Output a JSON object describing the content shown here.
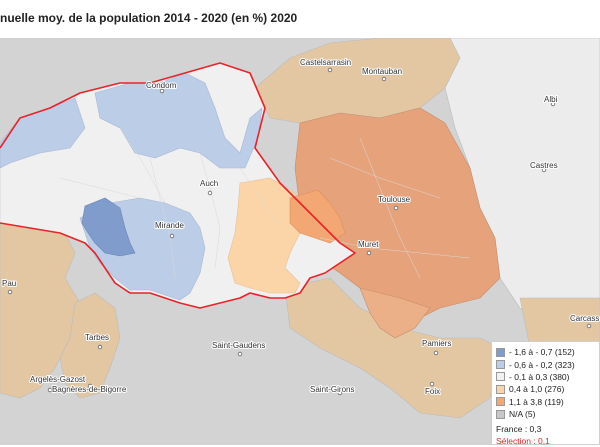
{
  "title": "nuelle moy. de la population 2014 - 2020 (en %) 2020",
  "colors": {
    "class_1": "#7f9ccc",
    "class_2": "#bccde8",
    "class_3": "#f1f1f1",
    "class_4": "#fbd5a7",
    "class_5": "#f3a772",
    "na": "#c7c7c7",
    "selection_border": "#e8232a"
  },
  "cities": [
    {
      "name": "Castelsarrasin"
    },
    {
      "name": "Montauban"
    },
    {
      "name": "Condom"
    },
    {
      "name": "Albi"
    },
    {
      "name": "Auch"
    },
    {
      "name": "Toulouse"
    },
    {
      "name": "Castres"
    },
    {
      "name": "Mirande"
    },
    {
      "name": "Muret"
    },
    {
      "name": "Pau"
    },
    {
      "name": "Tarbes"
    },
    {
      "name": "Carcass"
    },
    {
      "name": "Saint-Gaudens"
    },
    {
      "name": "Pamiers"
    },
    {
      "name": "Argelès-Gazost"
    },
    {
      "name": "Bagnères-de-Bigorre"
    },
    {
      "name": "Saint-Girons"
    },
    {
      "name": "Foix"
    }
  ],
  "legend": {
    "items": [
      {
        "label": "- 1,6 à - 0,7 (152)",
        "color": "#7f9ccc"
      },
      {
        "label": "- 0,6 à - 0,2 (323)",
        "color": "#bccde8"
      },
      {
        "label": "- 0,1 à 0,3 (380)",
        "color": "#f1f1f1"
      },
      {
        "label": "0,4 à 1,0 (276)",
        "color": "#fbd5a7"
      },
      {
        "label": "1,1 à 3,8 (119)",
        "color": "#f3a772"
      },
      {
        "label": "N/A (5)",
        "color": "#c7c7c7"
      }
    ],
    "france": "France : 0,3",
    "selection": "Sélection : 0,1"
  }
}
